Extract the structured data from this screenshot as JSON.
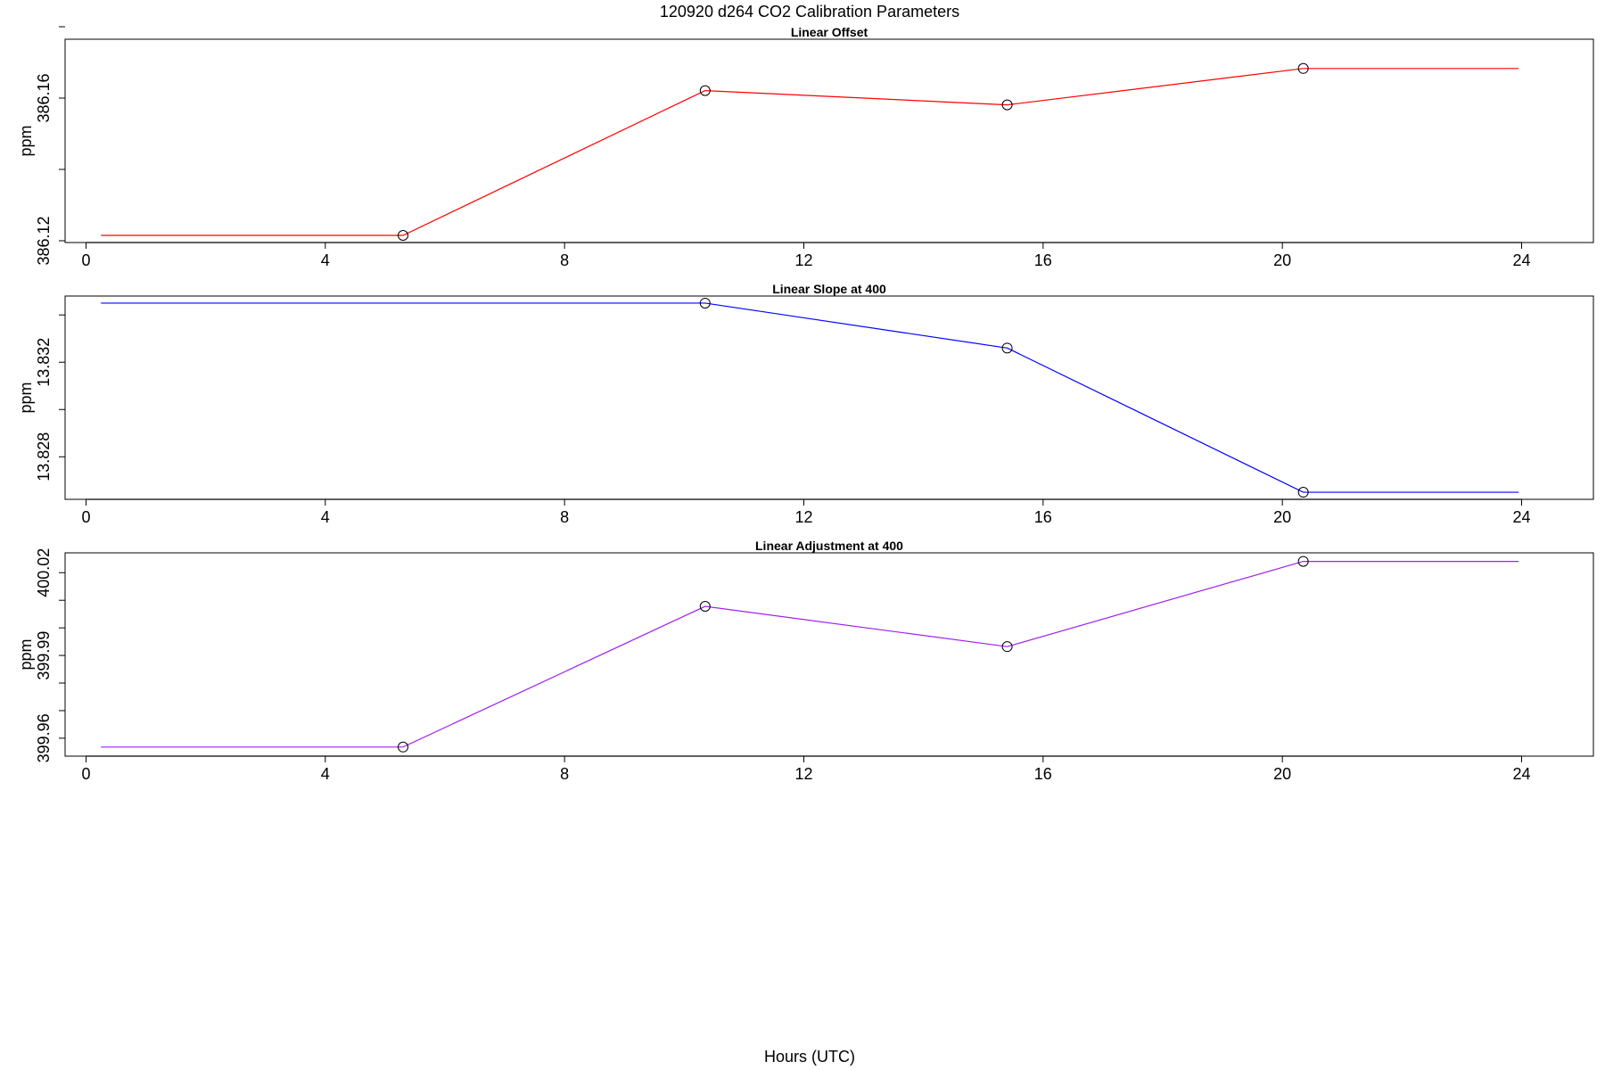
{
  "figure": {
    "title": "120920   d264   CO2 Calibration Parameters",
    "xlabel": "Hours (UTC)"
  },
  "chart_data": [
    {
      "type": "line",
      "title": "Linear Offset",
      "ylabel": "ppm",
      "color": "#ff0000",
      "xlim": [
        -0.35,
        25.2
      ],
      "ylim": [
        386.1195,
        386.1765
      ],
      "xticks": [
        0,
        4,
        8,
        12,
        16,
        20,
        24
      ],
      "yticks_labeled": [
        386.12,
        386.16
      ],
      "yticks_minor": [
        386.14,
        386.18
      ],
      "line_x": [
        0.25,
        5.3,
        10.35,
        15.4,
        20.35,
        23.95
      ],
      "line_y": [
        386.1215,
        386.1215,
        386.1621,
        386.1581,
        386.1683,
        386.1683
      ],
      "points_x": [
        5.3,
        10.35,
        15.4,
        20.35
      ],
      "points_y": [
        386.1215,
        386.1621,
        386.1581,
        386.1683
      ]
    },
    {
      "type": "line",
      "title": "Linear Slope at 400",
      "ylabel": "ppm",
      "color": "#0000ff",
      "xlim": [
        -0.35,
        25.2
      ],
      "ylim": [
        13.8262,
        13.8348
      ],
      "xticks": [
        0,
        4,
        8,
        12,
        16,
        20,
        24
      ],
      "yticks_labeled": [
        13.828,
        13.832
      ],
      "yticks_minor": [
        13.83,
        13.834
      ],
      "line_x": [
        0.25,
        10.35,
        15.4,
        20.35,
        23.95
      ],
      "line_y": [
        13.8345,
        13.8345,
        13.8326,
        13.8265,
        13.8265
      ],
      "points_x": [
        10.35,
        15.4,
        20.35
      ],
      "points_y": [
        13.8345,
        13.8326,
        13.8265
      ]
    },
    {
      "type": "line",
      "title": "Linear Adjustment at 400",
      "ylabel": "ppm",
      "color": "#a020f0",
      "xlim": [
        -0.35,
        25.2
      ],
      "ylim": [
        399.9535,
        400.0272
      ],
      "xticks": [
        0,
        4,
        8,
        12,
        16,
        20,
        24
      ],
      "yticks_labeled": [
        399.96,
        399.99,
        400.02
      ],
      "yticks_minor": [
        399.97,
        399.98,
        400.0,
        400.01
      ],
      "line_x": [
        0.25,
        5.3,
        10.35,
        15.4,
        20.35,
        23.95
      ],
      "line_y": [
        399.9568,
        399.9568,
        400.0078,
        399.9932,
        400.0241,
        400.0241
      ],
      "points_x": [
        5.3,
        10.35,
        15.4,
        20.35
      ],
      "points_y": [
        399.9568,
        400.0078,
        399.9932,
        400.0241
      ]
    }
  ]
}
